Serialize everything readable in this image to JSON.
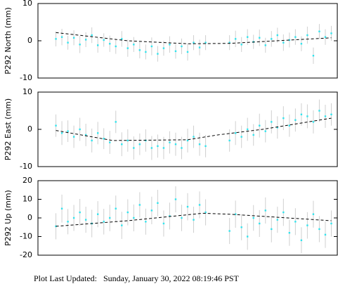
{
  "chart_data": [
    {
      "type": "scatter",
      "ylabel": "P292 North (mm)",
      "ylim": [
        -10,
        10
      ],
      "yticks": [
        -10,
        0,
        10
      ],
      "xlim": [
        0,
        100
      ],
      "x": [
        6,
        8,
        10,
        12,
        14,
        16,
        18,
        20,
        22,
        24,
        26,
        28,
        30,
        32,
        34,
        36,
        38,
        40,
        42,
        44,
        46,
        48,
        50,
        52,
        54,
        56,
        64,
        66,
        68,
        70,
        72,
        74,
        76,
        78,
        80,
        82,
        84,
        86,
        88,
        90,
        92,
        94,
        96,
        98
      ],
      "values": [
        0.5,
        1,
        -0.5,
        0.8,
        -1,
        0.3,
        1.5,
        -1.2,
        0.2,
        -0.8,
        -1.5,
        0.5,
        -2,
        -1,
        -2.5,
        -3,
        -1.5,
        -3.5,
        -2,
        -1,
        -2.8,
        -1.5,
        -3,
        -0.5,
        -1.8,
        -0.5,
        -0.5,
        0.5,
        -1,
        1,
        -0.3,
        0.8,
        -1.2,
        0.5,
        1.5,
        -0.5,
        0.2,
        1,
        -0.8,
        1.5,
        -4,
        2.5,
        1,
        2
      ],
      "errors": [
        2,
        2.2,
        1.9,
        2,
        2.3,
        2,
        2.1,
        2,
        1.8,
        2.2,
        2,
        2.1,
        2.3,
        2,
        2.2,
        2,
        2.4,
        2.1,
        2,
        2.2,
        2,
        2.1,
        2.3,
        2,
        2.1,
        2,
        2,
        2.2,
        2,
        2.1,
        1.9,
        2.2,
        2,
        2.1,
        2,
        2.2,
        2,
        2.1,
        2,
        2.3,
        2.2,
        2,
        2.1,
        2
      ],
      "color": "#33e4ee",
      "trend": {
        "x": [
          6,
          30,
          50,
          64,
          98
        ],
        "values": [
          2.2,
          0,
          -0.8,
          -0.7,
          0.8
        ],
        "color": "#000000"
      }
    },
    {
      "type": "scatter",
      "ylabel": "P292 East (mm)",
      "ylim": [
        -10,
        10
      ],
      "yticks": [
        -10,
        0,
        10
      ],
      "xlim": [
        0,
        100
      ],
      "x": [
        6,
        8,
        10,
        12,
        14,
        16,
        18,
        20,
        22,
        24,
        26,
        28,
        30,
        32,
        34,
        36,
        38,
        40,
        42,
        44,
        46,
        48,
        50,
        52,
        54,
        56,
        64,
        66,
        68,
        70,
        72,
        74,
        76,
        78,
        80,
        82,
        84,
        86,
        88,
        90,
        92,
        94,
        96,
        98
      ],
      "values": [
        1,
        -1,
        -0.5,
        -2,
        0,
        -1.5,
        -3,
        -1,
        -2.5,
        -3.5,
        2,
        -4,
        -3,
        -5,
        -4,
        -3,
        -5,
        -4.5,
        -5,
        -3.5,
        -4,
        -5,
        -3,
        -2,
        -4,
        -4.5,
        -3,
        -1,
        -2,
        0,
        -1.5,
        1,
        -0.5,
        2,
        0.5,
        3,
        1,
        2.5,
        4,
        3.5,
        2,
        5,
        3.5,
        4
      ],
      "errors": [
        3,
        3.2,
        2.9,
        3,
        3.1,
        3,
        3.2,
        3,
        2.8,
        3.1,
        3,
        3.2,
        3,
        3.1,
        2.9,
        3,
        3.2,
        3.1,
        3,
        3,
        3.1,
        3,
        3.2,
        3,
        3.1,
        3,
        3,
        3.2,
        3,
        3.1,
        2.9,
        3.2,
        3,
        3.1,
        3,
        3.2,
        3,
        3.1,
        3,
        3.2,
        3.1,
        3,
        3.1,
        3
      ],
      "color": "#33e4ee",
      "trend": {
        "x": [
          6,
          25,
          50,
          60,
          75,
          98
        ],
        "values": [
          -0.3,
          -3,
          -2.8,
          -1.5,
          0,
          3
        ],
        "color": "#000000"
      }
    },
    {
      "type": "scatter",
      "ylabel": "P292 Up (mm)",
      "ylim": [
        -20,
        20
      ],
      "yticks": [
        -20,
        -10,
        0,
        10,
        20
      ],
      "xlim": [
        0,
        100
      ],
      "x": [
        6,
        8,
        10,
        12,
        14,
        16,
        18,
        20,
        22,
        24,
        26,
        28,
        30,
        32,
        34,
        36,
        38,
        40,
        42,
        44,
        46,
        48,
        50,
        52,
        54,
        56,
        64,
        66,
        68,
        70,
        72,
        74,
        76,
        78,
        80,
        82,
        84,
        86,
        88,
        90,
        92,
        94,
        96,
        98
      ],
      "values": [
        -4.5,
        5,
        -2,
        0,
        3,
        -1,
        -3,
        2,
        -2,
        0,
        5,
        -4,
        3,
        0,
        7,
        -2,
        4,
        8,
        -3,
        1,
        10,
        0,
        6,
        -1,
        7,
        3,
        -7,
        2,
        -5,
        -10,
        0,
        -3,
        4,
        -6,
        -1,
        3,
        -8,
        -2,
        -12,
        -4,
        2,
        -6,
        -9,
        -3
      ],
      "errors": [
        7,
        7.5,
        6.8,
        7,
        7.2,
        7,
        7.4,
        7,
        6.9,
        7.1,
        7,
        7.3,
        7,
        7.2,
        6.8,
        7,
        7.4,
        7.1,
        7,
        7.2,
        7,
        7.1,
        7.3,
        7,
        7.2,
        7,
        7,
        7.3,
        7,
        7.1,
        6.9,
        7.2,
        7,
        7.1,
        7,
        7.3,
        7,
        7.2,
        7,
        7.1,
        7.2,
        7,
        7.1,
        7
      ],
      "color": "#33e4ee",
      "trend": {
        "x": [
          6,
          30,
          55,
          64,
          98
        ],
        "values": [
          -4.5,
          -1.5,
          2.5,
          2,
          -1.5
        ],
        "color": "#000000"
      }
    }
  ],
  "footer": {
    "label": "Plot Last Updated:",
    "timestamp": "Sunday, January 30, 2022 08:19:46 PST"
  }
}
